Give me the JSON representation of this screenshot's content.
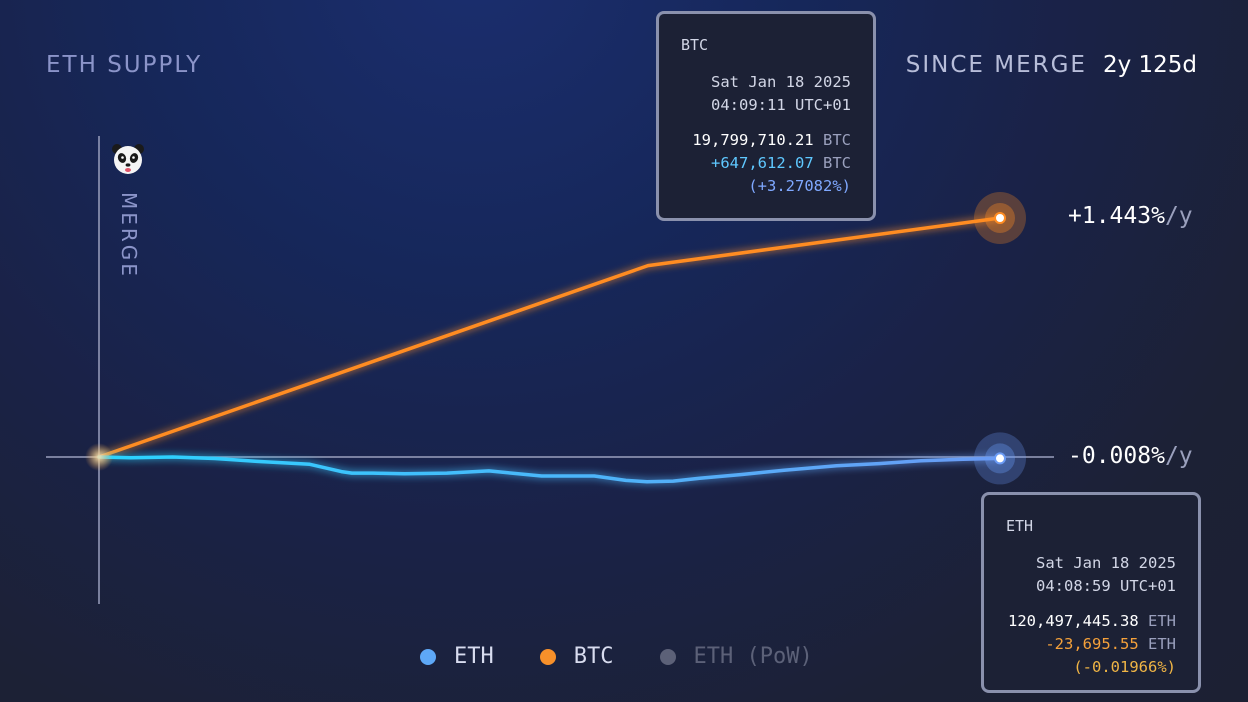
{
  "header": {
    "title": "ETH SUPPLY",
    "since_label": "SINCE MERGE",
    "since_value": "2y 125d"
  },
  "merge_label": "MERGE",
  "icons": {
    "merge_marker": "panda-icon"
  },
  "rates": {
    "btc": {
      "value": "+1.443%",
      "unit": "/y"
    },
    "eth": {
      "value": "-0.008%",
      "unit": "/y"
    }
  },
  "tooltips": {
    "btc": {
      "title": "BTC",
      "date": "Sat Jan 18 2025",
      "time": "04:09:11 UTC+01",
      "amount": "19,799,710.21",
      "amount_unit": "BTC",
      "change": "+647,612.07",
      "change_unit": "BTC",
      "change_pct": "(+3.27082%)"
    },
    "eth": {
      "title": "ETH",
      "date": "Sat Jan 18 2025",
      "time": "04:08:59 UTC+01",
      "amount": "120,497,445.38",
      "amount_unit": "ETH",
      "change": "-23,695.55",
      "change_unit": "ETH",
      "change_pct": "(-0.01966%)"
    }
  },
  "legend": [
    {
      "label": "ETH",
      "color": "#5ea8f7",
      "active": true
    },
    {
      "label": "BTC",
      "color": "#f7902a",
      "active": true
    },
    {
      "label": "ETH (PoW)",
      "color": "#5c6178",
      "active": false
    }
  ],
  "colors": {
    "eth_line_start": "#2ad4ff",
    "eth_line_end": "#6a9bf5",
    "btc_line": "#ff8c22",
    "axis": "#9aa0bd"
  },
  "chart_data": {
    "type": "line",
    "xlabel": "",
    "ylabel": "",
    "x_unit": "days since merge",
    "y_unit": "% supply change since merge",
    "xlim": [
      0,
      855
    ],
    "ylim": [
      -0.29,
      3.27082
    ],
    "grid": false,
    "legend_position": "bottom-center",
    "series": [
      {
        "name": "BTC",
        "color": "#ff8c22",
        "x": [
          0,
          521,
          855
        ],
        "y": [
          0,
          2.62,
          3.27082
        ]
      },
      {
        "name": "ETH",
        "color": "#2ad4ff",
        "x": [
          0,
          30,
          70,
          110,
          150,
          200,
          230,
          240,
          260,
          290,
          330,
          370,
          420,
          470,
          500,
          520,
          545,
          570,
          610,
          650,
          700,
          740,
          780,
          820,
          855
        ],
        "y": [
          0,
          -0.01,
          0.0,
          -0.02,
          -0.06,
          -0.1,
          -0.2,
          -0.22,
          -0.22,
          -0.23,
          -0.22,
          -0.19,
          -0.26,
          -0.26,
          -0.32,
          -0.34,
          -0.33,
          -0.29,
          -0.24,
          -0.18,
          -0.12,
          -0.09,
          -0.05,
          -0.03,
          -0.01966
        ]
      }
    ]
  }
}
